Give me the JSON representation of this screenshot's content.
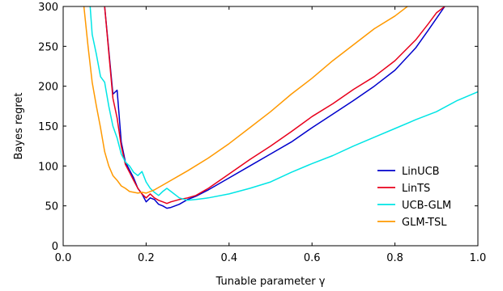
{
  "chart_data": {
    "type": "line",
    "title": "",
    "xlabel": "Tunable parameter γ",
    "ylabel": "Bayes regret",
    "xlim": [
      0.0,
      1.0
    ],
    "ylim": [
      0,
      300
    ],
    "xticks": [
      "0.0",
      "0.2",
      "0.4",
      "0.6",
      "0.8",
      "1.0"
    ],
    "yticks": [
      "0",
      "50",
      "100",
      "150",
      "200",
      "250",
      "300"
    ],
    "grid": false,
    "legend_position": "lower-right",
    "series": [
      {
        "name": "LinUCB",
        "color": "#0000cc",
        "x": [
          0.1,
          0.12,
          0.13,
          0.14,
          0.15,
          0.16,
          0.17,
          0.18,
          0.19,
          0.2,
          0.21,
          0.22,
          0.23,
          0.24,
          0.25,
          0.26,
          0.28,
          0.3,
          0.32,
          0.35,
          0.4,
          0.45,
          0.5,
          0.55,
          0.6,
          0.65,
          0.7,
          0.75,
          0.8,
          0.85,
          0.88,
          0.9,
          0.92
        ],
        "y": [
          300,
          190,
          195,
          130,
          105,
          95,
          85,
          72,
          65,
          55,
          60,
          58,
          52,
          50,
          47,
          48,
          52,
          58,
          62,
          70,
          85,
          100,
          115,
          130,
          148,
          165,
          182,
          200,
          220,
          248,
          270,
          285,
          300
        ]
      },
      {
        "name": "LinTS",
        "color": "#e8001c",
        "x": [
          0.1,
          0.12,
          0.13,
          0.14,
          0.15,
          0.16,
          0.17,
          0.18,
          0.19,
          0.2,
          0.21,
          0.22,
          0.23,
          0.24,
          0.25,
          0.26,
          0.28,
          0.3,
          0.32,
          0.35,
          0.4,
          0.45,
          0.5,
          0.55,
          0.6,
          0.65,
          0.7,
          0.75,
          0.8,
          0.85,
          0.88,
          0.9,
          0.92
        ],
        "y": [
          300,
          185,
          160,
          125,
          102,
          92,
          82,
          72,
          65,
          60,
          65,
          60,
          57,
          55,
          53,
          55,
          58,
          60,
          63,
          72,
          90,
          108,
          125,
          143,
          162,
          178,
          196,
          212,
          232,
          258,
          278,
          292,
          300
        ]
      },
      {
        "name": "UCB-GLM",
        "color": "#00e5e5",
        "x": [
          0.065,
          0.07,
          0.08,
          0.09,
          0.1,
          0.11,
          0.12,
          0.13,
          0.14,
          0.15,
          0.16,
          0.17,
          0.18,
          0.19,
          0.2,
          0.21,
          0.22,
          0.23,
          0.24,
          0.25,
          0.26,
          0.28,
          0.3,
          0.32,
          0.35,
          0.4,
          0.45,
          0.5,
          0.55,
          0.6,
          0.65,
          0.7,
          0.75,
          0.8,
          0.85,
          0.9,
          0.95,
          1.0
        ],
        "y": [
          300,
          265,
          240,
          212,
          205,
          175,
          150,
          135,
          115,
          105,
          100,
          92,
          88,
          93,
          80,
          72,
          67,
          63,
          68,
          72,
          68,
          60,
          57,
          58,
          60,
          65,
          72,
          80,
          92,
          103,
          113,
          125,
          136,
          147,
          158,
          168,
          182,
          193
        ]
      },
      {
        "name": "GLM-TSL",
        "color": "#ff9900",
        "x": [
          0.05,
          0.06,
          0.07,
          0.08,
          0.09,
          0.1,
          0.11,
          0.12,
          0.13,
          0.14,
          0.15,
          0.16,
          0.17,
          0.18,
          0.19,
          0.2,
          0.21,
          0.22,
          0.24,
          0.26,
          0.28,
          0.3,
          0.35,
          0.4,
          0.45,
          0.5,
          0.55,
          0.6,
          0.65,
          0.7,
          0.75,
          0.8,
          0.83
        ],
        "y": [
          300,
          250,
          205,
          175,
          148,
          118,
          100,
          88,
          82,
          75,
          72,
          68,
          67,
          66,
          67,
          66,
          68,
          70,
          76,
          82,
          88,
          94,
          110,
          128,
          148,
          168,
          190,
          210,
          232,
          252,
          272,
          288,
          300
        ]
      }
    ]
  }
}
